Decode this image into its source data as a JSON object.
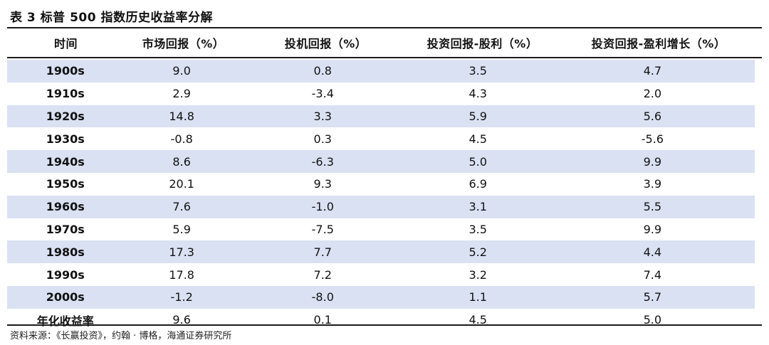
{
  "title": "表 3 标普 500 指数历史收益率分解",
  "headers": [
    "时间",
    "市场回报（%）",
    "投机回报（%）",
    "投资回报-股利（%）",
    "投资回报-盈利增长（%）"
  ],
  "rows": [
    {
      "period": "1900s",
      "market": "9.0",
      "speculative": "0.8",
      "dividend": "3.5",
      "earnings": "4.7",
      "shaded": true
    },
    {
      "period": "1910s",
      "market": "2.9",
      "speculative": "-3.4",
      "dividend": "4.3",
      "earnings": "2.0",
      "shaded": false
    },
    {
      "period": "1920s",
      "market": "14.8",
      "speculative": "3.3",
      "dividend": "5.9",
      "earnings": "5.6",
      "shaded": true
    },
    {
      "period": "1930s",
      "market": "-0.8",
      "speculative": "0.3",
      "dividend": "4.5",
      "earnings": "-5.6",
      "shaded": false
    },
    {
      "period": "1940s",
      "market": "8.6",
      "speculative": "-6.3",
      "dividend": "5.0",
      "earnings": "9.9",
      "shaded": true
    },
    {
      "period": "1950s",
      "market": "20.1",
      "speculative": "9.3",
      "dividend": "6.9",
      "earnings": "3.9",
      "shaded": false
    },
    {
      "period": "1960s",
      "market": "7.6",
      "speculative": "-1.0",
      "dividend": "3.1",
      "earnings": "5.5",
      "shaded": true
    },
    {
      "period": "1970s",
      "market": "5.9",
      "speculative": "-7.5",
      "dividend": "3.5",
      "earnings": "9.9",
      "shaded": false
    },
    {
      "period": "1980s",
      "market": "17.3",
      "speculative": "7.7",
      "dividend": "5.2",
      "earnings": "4.4",
      "shaded": true
    },
    {
      "period": "1990s",
      "market": "17.8",
      "speculative": "7.2",
      "dividend": "3.2",
      "earnings": "7.4",
      "shaded": false
    },
    {
      "period": "2000s",
      "market": "-1.2",
      "speculative": "-8.0",
      "dividend": "1.1",
      "earnings": "5.7",
      "shaded": true
    },
    {
      "period": "年化收益率",
      "market": "9.6",
      "speculative": "0.1",
      "dividend": "4.5",
      "earnings": "5.0",
      "shaded": false
    }
  ],
  "source": "资料来源：《长赢投资》，约翰 · 博格，海通证券研究所",
  "colors": {
    "shaded_row": "#d9e1f2",
    "rule": "#1a1a1a"
  }
}
